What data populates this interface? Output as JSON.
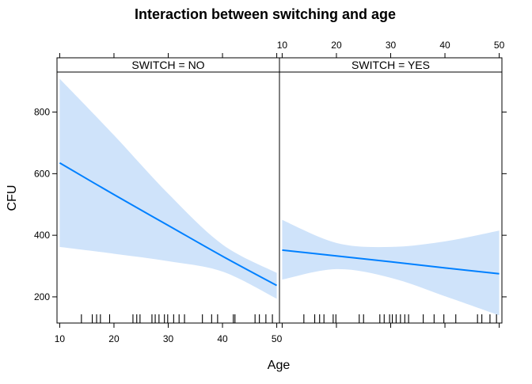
{
  "chart_data": {
    "type": "line",
    "title": "Interaction between switching and age",
    "xlabel": "Age",
    "ylabel": "CFU",
    "xlim": [
      9.5,
      50.5
    ],
    "ylim": [
      115,
      930
    ],
    "xticks": [
      10,
      20,
      30,
      40,
      50
    ],
    "yticks": [
      200,
      400,
      600,
      800
    ],
    "panels": [
      {
        "strip_label": "SWITCH = NO",
        "fit": {
          "x": [
            10,
            20,
            30,
            40,
            50
          ],
          "y": [
            635,
            532,
            432,
            332,
            237
          ]
        },
        "band_upper": {
          "x": [
            10,
            20,
            30,
            40,
            50
          ],
          "y": [
            908,
            725,
            535,
            370,
            278
          ]
        },
        "band_lower": {
          "x": [
            10,
            20,
            30,
            40,
            50
          ],
          "y": [
            362,
            340,
            316,
            282,
            194
          ]
        },
        "rug": [
          14,
          16,
          16.8,
          17.5,
          19.2,
          23.5,
          24.2,
          24.8,
          27,
          27.6,
          28.3,
          29.3,
          29.9,
          31,
          32,
          33,
          36.3,
          38,
          39.1,
          42,
          42.3,
          46,
          46.8,
          48,
          49.2
        ]
      },
      {
        "strip_label": "SWITCH = YES",
        "fit": {
          "x": [
            10,
            20,
            30,
            40,
            50
          ],
          "y": [
            352,
            333,
            314,
            294,
            275
          ]
        },
        "band_upper": {
          "x": [
            10,
            20,
            30,
            40,
            50
          ],
          "y": [
            450,
            375,
            362,
            380,
            415
          ]
        },
        "band_lower": {
          "x": [
            10,
            20,
            30,
            40,
            50
          ],
          "y": [
            256,
            290,
            262,
            202,
            140
          ]
        },
        "rug": [
          14,
          16,
          16.9,
          17.7,
          19.4,
          19.9,
          24.2,
          25,
          28,
          28.8,
          29.8,
          30.3,
          31,
          31.8,
          32.6,
          33.3,
          36,
          38,
          39.8,
          42,
          46,
          46.8,
          48.3,
          49.5
        ]
      }
    ],
    "colors": {
      "line": "#0080ff",
      "band": "#cfe3fa",
      "strip": "#ffffff"
    }
  }
}
